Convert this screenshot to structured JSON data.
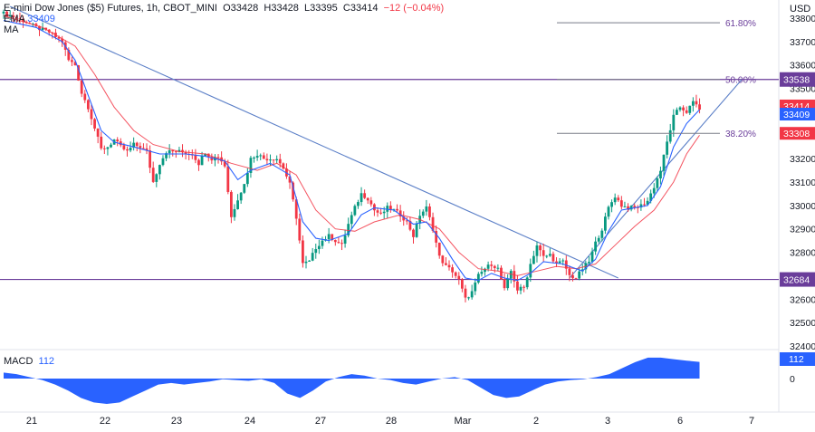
{
  "header": {
    "symbol": "E-mini Dow Jones ($5) Futures, 1h, CBOT_MINI",
    "o_label": "O",
    "o_val": "33428",
    "h_label": "H",
    "h_val": "33428",
    "l_label": "L",
    "l_val": "33395",
    "c_label": "C",
    "c_val": "33414",
    "change": "−12 (−0.04%)",
    "ema_label": "EMA",
    "ema_val": "33409",
    "ma_label": "MA"
  },
  "currency": "USD",
  "macd": {
    "label": "MACD",
    "value": "112",
    "zero_label": "0"
  },
  "colors": {
    "up": "#089981",
    "down": "#f23645",
    "ema": "#2962ff",
    "ma": "#f23645",
    "trend": "#5b7fc7",
    "level": "#6a3d9a",
    "fib": "#787b86",
    "macd": "#2962ff"
  },
  "chart_data": {
    "type": "candlestick",
    "title": "E-mini Dow Jones ($5) Futures, 1h, CBOT_MINI",
    "ylim": [
      32400,
      33850
    ],
    "y_ticks": [
      "33800",
      "33700",
      "33600",
      "33500",
      "33400",
      "33300",
      "33200",
      "33100",
      "33000",
      "32900",
      "32800",
      "32700",
      "32600",
      "32500",
      "32400"
    ],
    "x_ticks": [
      "21",
      "22",
      "23",
      "24",
      "27",
      "28",
      "Mar",
      "2",
      "3",
      "6",
      "7"
    ],
    "price_path": [
      [
        0,
        33820
      ],
      [
        6,
        33790
      ],
      [
        10,
        33760
      ],
      [
        14,
        33740
      ],
      [
        18,
        33700
      ],
      [
        20,
        33620
      ],
      [
        22,
        33600
      ],
      [
        24,
        33480
      ],
      [
        26,
        33420
      ],
      [
        28,
        33330
      ],
      [
        30,
        33240
      ],
      [
        32,
        33250
      ],
      [
        34,
        33280
      ],
      [
        36,
        33250
      ],
      [
        38,
        33230
      ],
      [
        40,
        33260
      ],
      [
        42,
        33250
      ],
      [
        44,
        33230
      ],
      [
        46,
        33100
      ],
      [
        48,
        33180
      ],
      [
        50,
        33230
      ],
      [
        54,
        33230
      ],
      [
        58,
        33220
      ],
      [
        60,
        33180
      ],
      [
        62,
        33230
      ],
      [
        64,
        33200
      ],
      [
        66,
        33210
      ],
      [
        68,
        33170
      ],
      [
        70,
        32950
      ],
      [
        72,
        33030
      ],
      [
        74,
        33090
      ],
      [
        76,
        33200
      ],
      [
        78,
        33220
      ],
      [
        80,
        33200
      ],
      [
        84,
        33200
      ],
      [
        86,
        33160
      ],
      [
        88,
        33090
      ],
      [
        90,
        32950
      ],
      [
        92,
        32750
      ],
      [
        94,
        32760
      ],
      [
        96,
        32820
      ],
      [
        98,
        32850
      ],
      [
        100,
        32870
      ],
      [
        102,
        32850
      ],
      [
        104,
        32830
      ],
      [
        106,
        32920
      ],
      [
        108,
        32990
      ],
      [
        110,
        33050
      ],
      [
        112,
        33030
      ],
      [
        114,
        32980
      ],
      [
        116,
        32960
      ],
      [
        118,
        32990
      ],
      [
        120,
        32980
      ],
      [
        122,
        32960
      ],
      [
        124,
        32930
      ],
      [
        126,
        32870
      ],
      [
        128,
        32960
      ],
      [
        130,
        32990
      ],
      [
        132,
        32900
      ],
      [
        134,
        32780
      ],
      [
        136,
        32740
      ],
      [
        138,
        32720
      ],
      [
        140,
        32680
      ],
      [
        142,
        32600
      ],
      [
        144,
        32630
      ],
      [
        146,
        32700
      ],
      [
        148,
        32730
      ],
      [
        150,
        32750
      ],
      [
        152,
        32730
      ],
      [
        154,
        32640
      ],
      [
        156,
        32720
      ],
      [
        158,
        32640
      ],
      [
        160,
        32650
      ],
      [
        162,
        32750
      ],
      [
        164,
        32830
      ],
      [
        166,
        32780
      ],
      [
        168,
        32790
      ],
      [
        170,
        32750
      ],
      [
        172,
        32760
      ],
      [
        174,
        32700
      ],
      [
        176,
        32690
      ],
      [
        178,
        32730
      ],
      [
        180,
        32760
      ],
      [
        182,
        32840
      ],
      [
        184,
        32900
      ],
      [
        186,
        32990
      ],
      [
        188,
        33040
      ],
      [
        190,
        33000
      ],
      [
        192,
        32990
      ],
      [
        194,
        32990
      ],
      [
        196,
        33000
      ],
      [
        198,
        33020
      ],
      [
        200,
        33080
      ],
      [
        202,
        33150
      ],
      [
        204,
        33270
      ],
      [
        206,
        33380
      ],
      [
        208,
        33420
      ],
      [
        210,
        33400
      ],
      [
        212,
        33440
      ],
      [
        213,
        33430
      ],
      [
        214,
        33414
      ]
    ],
    "ema_path": [
      [
        0,
        33790
      ],
      [
        10,
        33760
      ],
      [
        18,
        33700
      ],
      [
        22,
        33620
      ],
      [
        26,
        33470
      ],
      [
        30,
        33320
      ],
      [
        34,
        33270
      ],
      [
        40,
        33250
      ],
      [
        48,
        33220
      ],
      [
        56,
        33220
      ],
      [
        62,
        33210
      ],
      [
        68,
        33190
      ],
      [
        72,
        33110
      ],
      [
        76,
        33150
      ],
      [
        82,
        33180
      ],
      [
        88,
        33130
      ],
      [
        92,
        32930
      ],
      [
        96,
        32860
      ],
      [
        100,
        32850
      ],
      [
        106,
        32880
      ],
      [
        110,
        32960
      ],
      [
        114,
        32990
      ],
      [
        120,
        32980
      ],
      [
        126,
        32920
      ],
      [
        130,
        32930
      ],
      [
        134,
        32860
      ],
      [
        138,
        32770
      ],
      [
        142,
        32690
      ],
      [
        146,
        32680
      ],
      [
        150,
        32710
      ],
      [
        154,
        32690
      ],
      [
        158,
        32680
      ],
      [
        162,
        32710
      ],
      [
        166,
        32760
      ],
      [
        172,
        32750
      ],
      [
        178,
        32720
      ],
      [
        182,
        32770
      ],
      [
        186,
        32890
      ],
      [
        190,
        32980
      ],
      [
        194,
        32990
      ],
      [
        198,
        33000
      ],
      [
        202,
        33080
      ],
      [
        206,
        33250
      ],
      [
        210,
        33350
      ],
      [
        214,
        33409
      ]
    ],
    "ma_path": [
      [
        0,
        33810
      ],
      [
        12,
        33760
      ],
      [
        22,
        33680
      ],
      [
        28,
        33560
      ],
      [
        34,
        33420
      ],
      [
        40,
        33320
      ],
      [
        46,
        33260
      ],
      [
        54,
        33230
      ],
      [
        62,
        33220
      ],
      [
        70,
        33180
      ],
      [
        78,
        33150
      ],
      [
        84,
        33180
      ],
      [
        90,
        33130
      ],
      [
        96,
        32980
      ],
      [
        102,
        32900
      ],
      [
        108,
        32890
      ],
      [
        114,
        32930
      ],
      [
        122,
        32960
      ],
      [
        128,
        32940
      ],
      [
        134,
        32900
      ],
      [
        140,
        32800
      ],
      [
        146,
        32730
      ],
      [
        152,
        32720
      ],
      [
        158,
        32700
      ],
      [
        164,
        32720
      ],
      [
        170,
        32740
      ],
      [
        176,
        32730
      ],
      [
        182,
        32750
      ],
      [
        188,
        32830
      ],
      [
        194,
        32910
      ],
      [
        200,
        32980
      ],
      [
        206,
        33100
      ],
      [
        210,
        33220
      ],
      [
        214,
        33300
      ]
    ],
    "levels": [
      {
        "price": 33538,
        "label": "33538"
      },
      {
        "price": 32684,
        "label": "32684"
      }
    ],
    "fibonacci": [
      {
        "ratio": "61.80%",
        "price": 33780
      },
      {
        "ratio": "50.00%",
        "price": 33538
      },
      {
        "ratio": "38.20%",
        "price": 33308
      }
    ],
    "trendlines": [
      {
        "from": [
          2,
          33850
        ],
        "to": [
          189,
          32690
        ]
      },
      {
        "from": [
          174,
          32690
        ],
        "to": [
          227,
          33538
        ]
      }
    ],
    "price_labels": [
      {
        "text": "33414",
        "price": 33425,
        "color": "#f23645"
      },
      {
        "text": "33409",
        "price": 33390,
        "color": "#2962ff"
      },
      {
        "text": "33308",
        "price": 33308,
        "color": "#f23645"
      }
    ],
    "macd_values": [
      40,
      30,
      10,
      -10,
      -40,
      -80,
      -130,
      -160,
      -170,
      -160,
      -120,
      -80,
      -40,
      -30,
      -40,
      -30,
      -20,
      -5,
      -10,
      -15,
      -5,
      -30,
      -100,
      -130,
      -80,
      -20,
      10,
      30,
      20,
      0,
      -10,
      -30,
      -40,
      -20,
      0,
      10,
      -10,
      -60,
      -110,
      -130,
      -120,
      -80,
      -40,
      -20,
      -10,
      -5,
      10,
      30,
      70,
      110,
      140,
      140,
      130,
      120,
      112
    ]
  }
}
